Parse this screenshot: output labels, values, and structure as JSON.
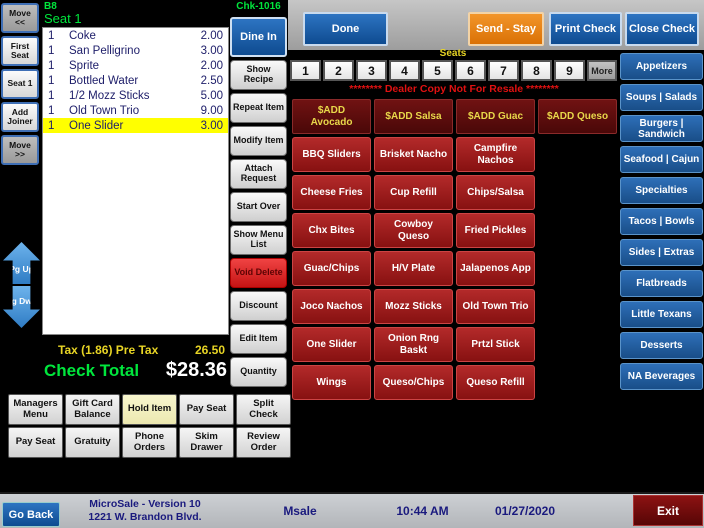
{
  "left_panel": {
    "buttons": [
      {
        "label": "Move\n<<",
        "dark": true
      },
      {
        "label": "First\nSeat"
      },
      {
        "label": "Seat 1"
      },
      {
        "label": "Add\nJoiner"
      },
      {
        "label": "Move\n>>",
        "dark": true
      }
    ],
    "pg_up": "Pg Up",
    "pg_dwn": "Pg Dwn"
  },
  "receipt": {
    "table": "B8",
    "seat_header": "Seat 1",
    "items": [
      {
        "qty": "1",
        "name": "Coke",
        "price": "2.00"
      },
      {
        "qty": "1",
        "name": "San Pelligrino",
        "price": "3.00"
      },
      {
        "qty": "1",
        "name": "Sprite",
        "price": "2.00"
      },
      {
        "qty": "1",
        "name": "Bottled Water",
        "price": "2.50"
      },
      {
        "qty": "1",
        "name": "1/2 Mozz Sticks",
        "price": "5.00"
      },
      {
        "qty": "1",
        "name": "Old Town Trio",
        "price": "9.00"
      },
      {
        "qty": "1",
        "name": "One Slider",
        "price": "3.00",
        "hl": true
      }
    ],
    "tax_label": "Tax (1.86)  Pre Tax",
    "tax_value": "26.50",
    "total_label": "Check Total",
    "total_value": "$28.36"
  },
  "action_column": {
    "check_number": "Chk-1016",
    "order_mode": "Dine In",
    "buttons": [
      {
        "label": "Show Recipe"
      },
      {
        "label": "Repeat Item"
      },
      {
        "label": "Modify Item"
      },
      {
        "label": "Attach Request"
      },
      {
        "label": "Start Over"
      },
      {
        "label": "Show Menu List"
      },
      {
        "label": "Void Delete",
        "danger": true
      },
      {
        "label": "Discount"
      },
      {
        "label": "Edit Item"
      },
      {
        "label": "Quantity"
      }
    ]
  },
  "top_bar": {
    "done": "Done",
    "send_stay": "Send - Stay",
    "print_check": "Print Check",
    "close_check": "Close Check"
  },
  "seats": {
    "label": "Seats",
    "numbers": [
      "1",
      "2",
      "3",
      "4",
      "5",
      "6",
      "7",
      "8",
      "9"
    ],
    "more": "More"
  },
  "banner": "******** Dealer Copy Not For Resale ********",
  "menu": {
    "add_buttons": [
      "$ADD Avocado",
      "$ADD Salsa",
      "$ADD Guac",
      "$ADD Queso"
    ],
    "item_buttons": [
      "BBQ Sliders",
      "Brisket Nacho",
      "Campfire Nachos",
      "Cheese Fries",
      "Cup Refill",
      "Chips/Salsa",
      "Chx Bites",
      "Cowboy Queso",
      "Fried Pickles",
      "Guac/Chips",
      "H/V Plate",
      "Jalapenos App",
      "Joco Nachos",
      "Mozz Sticks",
      "Old Town Trio",
      "One Slider",
      "Onion Rng Baskt",
      "Prtzl Stick",
      "Wings",
      "Queso/Chips",
      "Queso Refill"
    ]
  },
  "categories": [
    "Appetizers",
    "Soups | Salads",
    "Burgers | Sandwich",
    "Seafood | Cajun",
    "Specialties",
    "Tacos | Bowls",
    "Sides | Extras",
    "Flatbreads",
    "Little Texans",
    "Desserts",
    "NA Beverages"
  ],
  "bottom_actions": {
    "buttons": [
      {
        "label": "Managers Menu"
      },
      {
        "label": "Gift Card Balance"
      },
      {
        "label": "Hold Item",
        "hl": true
      },
      {
        "label": "Pay Seat"
      },
      {
        "label": "Split Check"
      },
      {
        "label": "Pay Seat"
      },
      {
        "label": "Gratuity"
      },
      {
        "label": "Phone Orders"
      },
      {
        "label": "Skim Drawer"
      },
      {
        "label": "Review Order"
      }
    ]
  },
  "footer": {
    "go_back": "Go Back",
    "version_line1": "MicroSale - Version 10",
    "version_line2": "1221 W. Brandon Blvd.",
    "app": "Msale",
    "time": "10:44 AM",
    "date": "01/27/2020",
    "exit": "Exit"
  },
  "colors": {
    "highlight_green": "#00e63c",
    "highlight_yellow": "#e8d525",
    "banner_red": "#e01111",
    "menu_red": "#9c1a1a",
    "category_blue": "#24619f",
    "send_orange": "#e8820e"
  }
}
